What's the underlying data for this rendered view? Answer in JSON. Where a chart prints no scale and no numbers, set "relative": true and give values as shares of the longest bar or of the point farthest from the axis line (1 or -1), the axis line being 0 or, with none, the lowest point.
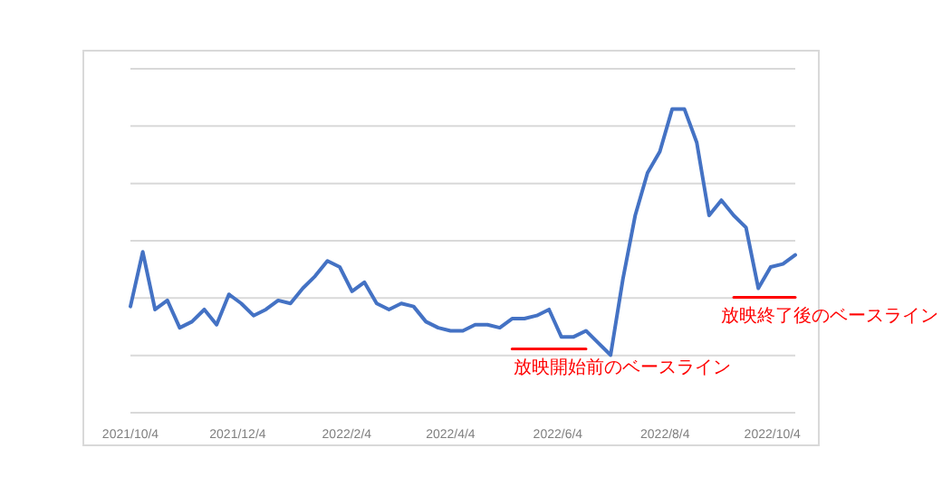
{
  "chart_data": {
    "type": "line",
    "relative": true,
    "grid": "y",
    "line_style": "solid",
    "marker": "none",
    "x": [
      "2021-10-04",
      "2021-10-11",
      "2021-10-18",
      "2021-10-25",
      "2021-11-01",
      "2021-11-08",
      "2021-11-15",
      "2021-11-22",
      "2021-11-29",
      "2021-12-06",
      "2021-12-13",
      "2021-12-20",
      "2021-12-27",
      "2022-01-03",
      "2022-01-10",
      "2022-01-17",
      "2022-01-24",
      "2022-01-31",
      "2022-02-07",
      "2022-02-14",
      "2022-02-21",
      "2022-02-28",
      "2022-03-07",
      "2022-03-14",
      "2022-03-21",
      "2022-03-28",
      "2022-04-04",
      "2022-04-11",
      "2022-04-18",
      "2022-04-25",
      "2022-05-02",
      "2022-05-09",
      "2022-05-16",
      "2022-05-23",
      "2022-05-30",
      "2022-06-06",
      "2022-06-13",
      "2022-06-20",
      "2022-06-27",
      "2022-07-04",
      "2022-07-11",
      "2022-07-18",
      "2022-07-25",
      "2022-08-01",
      "2022-08-08",
      "2022-08-15",
      "2022-08-22",
      "2022-08-29",
      "2022-09-05",
      "2022-09-12",
      "2022-09-19",
      "2022-09-26",
      "2022-10-03",
      "2022-10-10",
      "2022-10-17"
    ],
    "xlim": [
      "2021-10-04",
      "2022-10-17"
    ],
    "xticks": [
      {
        "value": "2021-10-04",
        "label": "2021/10/4"
      },
      {
        "value": "2021-12-04",
        "label": "2021/12/4"
      },
      {
        "value": "2022-02-04",
        "label": "2022/2/4"
      },
      {
        "value": "2022-04-04",
        "label": "2022/4/4"
      },
      {
        "value": "2022-06-04",
        "label": "2022/6/4"
      },
      {
        "value": "2022-08-04",
        "label": "2022/8/4"
      },
      {
        "value": "2022-10-04",
        "label": "2022/10/4"
      }
    ],
    "series": [
      {
        "color": "#4472c4",
        "values": [
          0.35,
          0.53,
          0.34,
          0.37,
          0.28,
          0.3,
          0.34,
          0.29,
          0.39,
          0.36,
          0.32,
          0.34,
          0.37,
          0.36,
          0.41,
          0.45,
          0.5,
          0.48,
          0.4,
          0.43,
          0.36,
          0.34,
          0.36,
          0.35,
          0.3,
          0.28,
          0.27,
          0.27,
          0.29,
          0.29,
          0.28,
          0.31,
          0.31,
          0.32,
          0.34,
          0.25,
          0.25,
          0.27,
          0.23,
          0.19,
          0.44,
          0.65,
          0.79,
          0.86,
          1.0,
          1.0,
          0.89,
          0.65,
          0.7,
          0.65,
          0.61,
          0.41,
          0.48,
          0.49,
          0.52
        ]
      },
      {
        "type": "line",
        "color": "#ff0000",
        "x": [
          "2022-05-09",
          "2022-06-20"
        ],
        "values": [
          0.21,
          0.21
        ]
      },
      {
        "type": "line",
        "color": "#ff0000",
        "x": [
          "2022-09-12",
          "2022-10-17"
        ],
        "values": [
          0.38,
          0.38
        ]
      }
    ],
    "annotations": [
      {
        "text": "放映開始前のベースライン",
        "x": "2022-05-09",
        "y": 0.21
      },
      {
        "text": "放映終了後のベースライン",
        "x": "2022-09-12",
        "y": 0.38
      }
    ]
  }
}
